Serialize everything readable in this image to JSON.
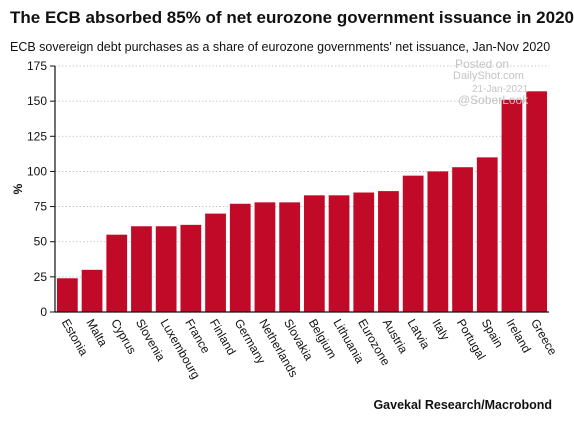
{
  "chart_data": {
    "type": "bar",
    "title": "The ECB absorbed 85% of net eurozone government issuance in 2020",
    "subtitle": "ECB sovereign debt purchases as a share of eurozone governments' net issuance, Jan-Nov 2020",
    "ylabel": "%",
    "xlabel": "",
    "ylim": [
      0,
      175
    ],
    "yticks": [
      0,
      25,
      50,
      75,
      100,
      125,
      150,
      175
    ],
    "grid": true,
    "bar_color": "#c00a27",
    "categories": [
      "Estonia",
      "Malta",
      "Cyprus",
      "Slovenia",
      "Luxembourg",
      "France",
      "Finland",
      "Germany",
      "Netherlands",
      "Slovakia",
      "Belgium",
      "Lithuania",
      "Eurozone",
      "Austria",
      "Latvia",
      "Italy",
      "Portugal",
      "Spain",
      "Ireland",
      "Greece"
    ],
    "values": [
      24,
      30,
      55,
      61,
      61,
      62,
      70,
      77,
      78,
      78,
      83,
      83,
      85,
      86,
      97,
      100,
      103,
      110,
      151,
      157
    ],
    "source": "Gavekal Research/Macrobond"
  },
  "watermark": {
    "line1": "Posted on",
    "line2": "DailyShot.com",
    "line3": "21-Jan-2021",
    "line4": "@SoberLook"
  }
}
